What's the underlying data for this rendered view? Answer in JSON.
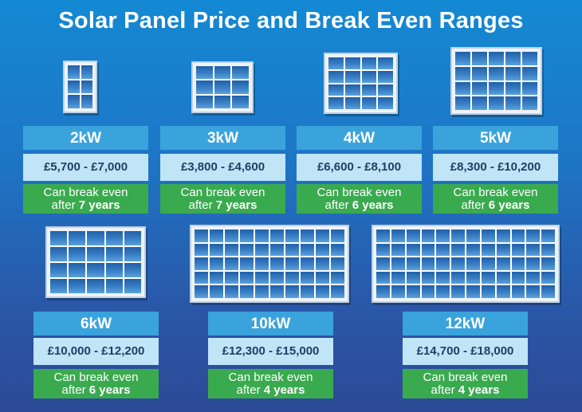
{
  "title": "Solar Panel Price and Break Even Ranges",
  "breakeven_prefix": "Can break even",
  "after_word": "after",
  "systems": [
    {
      "size": "2kW",
      "price": "£5,700 - £7,000",
      "years": "7 years"
    },
    {
      "size": "3kW",
      "price": "£3,800 - £4,600",
      "years": "7 years"
    },
    {
      "size": "4kW",
      "price": "£6,600 - £8,100",
      "years": "6 years"
    },
    {
      "size": "5kW",
      "price": "£8,300 - £10,200",
      "years": "6 years"
    },
    {
      "size": "6kW",
      "price": "£10,000 - £12,200",
      "years": "6 years"
    },
    {
      "size": "10kW",
      "price": "£12,300 - £15,000",
      "years": "4 years"
    },
    {
      "size": "12kW",
      "price": "£14,700 - £18,000",
      "years": "4 years"
    }
  ]
}
